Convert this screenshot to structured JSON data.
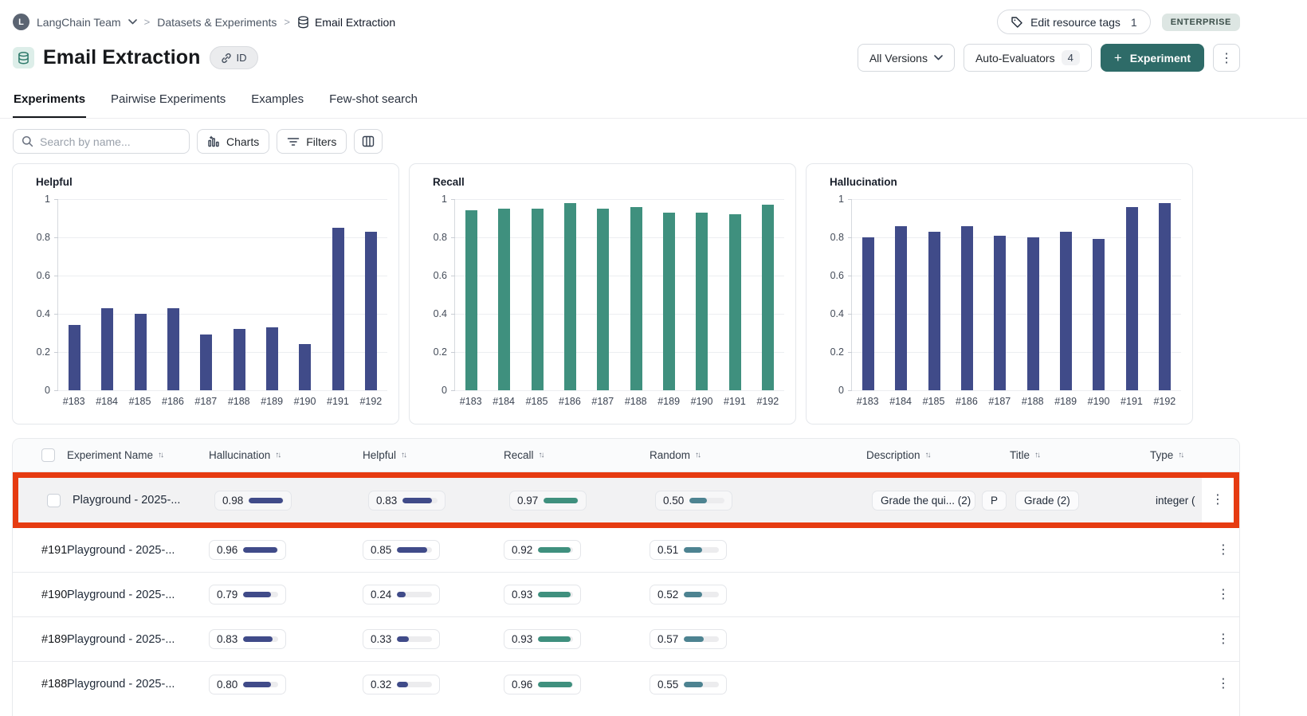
{
  "breadcrumb": {
    "team_initial": "L",
    "team": "LangChain Team",
    "section": "Datasets & Experiments",
    "page": "Email Extraction",
    "separator": ">"
  },
  "topbar_right": {
    "edit_tags_label": "Edit resource tags",
    "edit_tags_count": "1",
    "plan_badge": "ENTERPRISE"
  },
  "header": {
    "title": "Email Extraction",
    "id_button": "ID",
    "versions_button": "All Versions",
    "auto_evaluators_label": "Auto-Evaluators",
    "auto_evaluators_count": "4",
    "new_experiment_plus": "+",
    "new_experiment_label": "Experiment",
    "more_label": "⋮"
  },
  "tabs": [
    {
      "label": "Experiments",
      "active": true
    },
    {
      "label": "Pairwise Experiments",
      "active": false
    },
    {
      "label": "Examples",
      "active": false
    },
    {
      "label": "Few-shot search",
      "active": false
    }
  ],
  "toolbar": {
    "search_placeholder": "Search by name...",
    "charts_button": "Charts",
    "filters_button": "Filters"
  },
  "colors": {
    "navy": "#404b89",
    "teal": "#3f907e",
    "random_teal": "#4d8391",
    "highlight_red": "#e63b11",
    "primary_button": "#2e6b68"
  },
  "chart_data": [
    {
      "type": "bar",
      "title": "Helpful",
      "categories": [
        "#183",
        "#184",
        "#185",
        "#186",
        "#187",
        "#188",
        "#189",
        "#190",
        "#191",
        "#192"
      ],
      "values": [
        0.34,
        0.43,
        0.4,
        0.43,
        0.29,
        0.32,
        0.33,
        0.24,
        0.85,
        0.83
      ],
      "color": "#404b89",
      "ylim": [
        0,
        1
      ],
      "yticks": [
        0,
        0.2,
        0.4,
        0.6,
        0.8,
        1
      ],
      "grid": true,
      "xlabel": "",
      "ylabel": ""
    },
    {
      "type": "bar",
      "title": "Recall",
      "categories": [
        "#183",
        "#184",
        "#185",
        "#186",
        "#187",
        "#188",
        "#189",
        "#190",
        "#191",
        "#192"
      ],
      "values": [
        0.94,
        0.95,
        0.95,
        0.98,
        0.95,
        0.96,
        0.93,
        0.93,
        0.92,
        0.97
      ],
      "color": "#3f907e",
      "ylim": [
        0,
        1
      ],
      "yticks": [
        0,
        0.2,
        0.4,
        0.6,
        0.8,
        1
      ],
      "grid": true,
      "xlabel": "",
      "ylabel": ""
    },
    {
      "type": "bar",
      "title": "Hallucination",
      "categories": [
        "#183",
        "#184",
        "#185",
        "#186",
        "#187",
        "#188",
        "#189",
        "#190",
        "#191",
        "#192"
      ],
      "values": [
        0.8,
        0.86,
        0.83,
        0.86,
        0.81,
        0.8,
        0.83,
        0.79,
        0.96,
        0.98
      ],
      "color": "#404b89",
      "ylim": [
        0,
        1
      ],
      "yticks": [
        0,
        0.2,
        0.4,
        0.6,
        0.8,
        1
      ],
      "grid": true,
      "xlabel": "",
      "ylabel": ""
    }
  ],
  "table": {
    "columns": [
      "Experiment Name",
      "Hallucination",
      "Helpful",
      "Recall",
      "Random",
      "Description",
      "Title",
      "Type"
    ],
    "metric_colors": {
      "hallucination": "#404b89",
      "helpful": "#404b89",
      "recall": "#3f907e",
      "random": "#4d8391"
    },
    "rows": [
      {
        "highlighted": true,
        "row_label": "",
        "name": "Playground - 2025-...",
        "hallucination": "0.98",
        "helpful": "0.83",
        "recall": "0.97",
        "random": "0.50",
        "description_tags": [
          "Grade the qui... (2)",
          "P"
        ],
        "title_tags": [
          "Grade (2)"
        ],
        "type_text": "integer ("
      },
      {
        "highlighted": false,
        "row_label": "#191",
        "name": "Playground - 2025-...",
        "hallucination": "0.96",
        "helpful": "0.85",
        "recall": "0.92",
        "random": "0.51",
        "description_tags": [],
        "title_tags": [],
        "type_text": ""
      },
      {
        "highlighted": false,
        "row_label": "#190",
        "name": "Playground - 2025-...",
        "hallucination": "0.79",
        "helpful": "0.24",
        "recall": "0.93",
        "random": "0.52",
        "description_tags": [],
        "title_tags": [],
        "type_text": ""
      },
      {
        "highlighted": false,
        "row_label": "#189",
        "name": "Playground - 2025-...",
        "hallucination": "0.83",
        "helpful": "0.33",
        "recall": "0.93",
        "random": "0.57",
        "description_tags": [],
        "title_tags": [],
        "type_text": ""
      },
      {
        "highlighted": false,
        "row_label": "#188",
        "name": "Playground - 2025-...",
        "hallucination": "0.80",
        "helpful": "0.32",
        "recall": "0.96",
        "random": "0.55",
        "description_tags": [],
        "title_tags": [],
        "type_text": ""
      }
    ]
  }
}
